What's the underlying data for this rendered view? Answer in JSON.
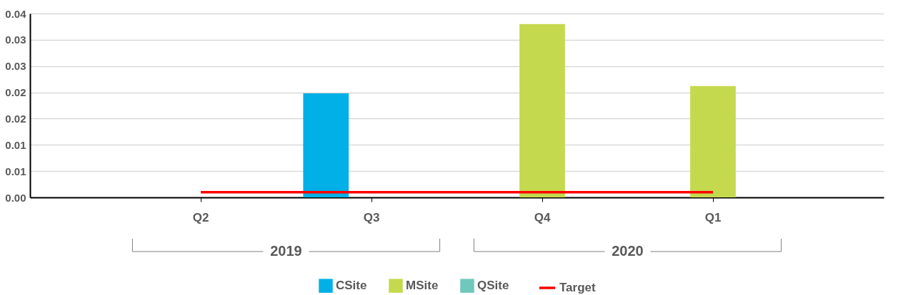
{
  "chart_data": {
    "type": "bar",
    "categories": [
      "Q2",
      "Q3",
      "Q4",
      "Q1"
    ],
    "series": [
      {
        "name": "CSite",
        "color": "#00b0e6",
        "values": [
          null,
          0.0198,
          null,
          null
        ]
      },
      {
        "name": "MSite",
        "color": "#c5d94e",
        "values": [
          null,
          null,
          0.033,
          0.0212
        ]
      },
      {
        "name": "QSite",
        "color": "#6fc8bc",
        "values": [
          null,
          null,
          null,
          null
        ]
      },
      {
        "name": "Target",
        "type": "line",
        "color": "#ff0000",
        "values": [
          0.001,
          0.001,
          0.001,
          0.001
        ]
      }
    ],
    "ylim": [
      0,
      0.035
    ],
    "yticks": [
      {
        "value": 0,
        "label": "0.00"
      },
      {
        "value": 0.005,
        "label": "0.01"
      },
      {
        "value": 0.01,
        "label": "0.01"
      },
      {
        "value": 0.015,
        "label": "0.02"
      },
      {
        "value": 0.02,
        "label": "0.02"
      },
      {
        "value": 0.025,
        "label": "0.03"
      },
      {
        "value": 0.03,
        "label": "0.03"
      },
      {
        "value": 0.035,
        "label": "0.04"
      }
    ],
    "annotations": [
      "2019",
      "2020"
    ],
    "grid": "y",
    "legend": "bottom"
  }
}
